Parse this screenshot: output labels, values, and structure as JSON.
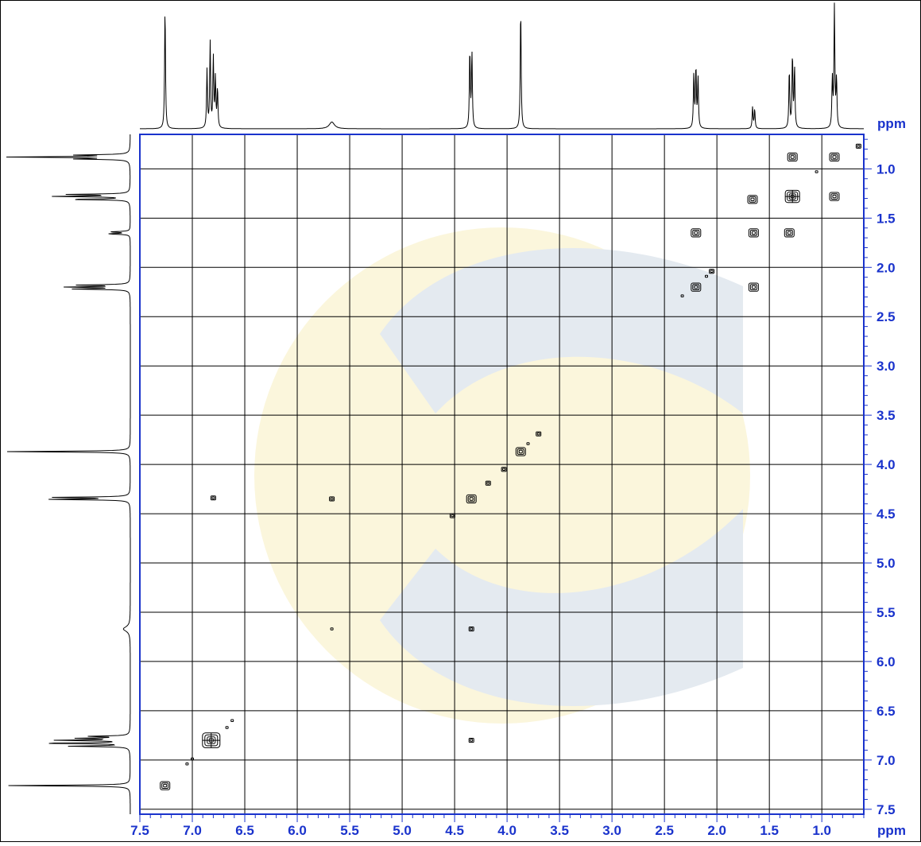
{
  "chart_data": {
    "type": "contour",
    "title": "",
    "x_axis": {
      "label": "ppm",
      "range": [
        7.5,
        0.6
      ],
      "ticks": [
        7.5,
        7.0,
        6.5,
        6.0,
        5.5,
        5.0,
        4.5,
        4.0,
        3.5,
        3.0,
        2.5,
        2.0,
        1.5,
        1.0
      ],
      "tick_labels": [
        "7.5",
        "7.0",
        "6.5",
        "6.0",
        "5.5",
        "5.0",
        "4.5",
        "4.0",
        "3.5",
        "3.0",
        "2.5",
        "2.0",
        "1.5",
        "1.0"
      ]
    },
    "y_axis": {
      "label": "ppm",
      "range": [
        0.65,
        7.55
      ],
      "ticks": [
        1.0,
        1.5,
        2.0,
        2.5,
        3.0,
        3.5,
        4.0,
        4.5,
        5.0,
        5.5,
        6.0,
        6.5,
        7.0,
        7.5
      ],
      "tick_labels": [
        "1.0",
        "1.5",
        "2.0",
        "2.5",
        "3.0",
        "3.5",
        "4.0",
        "4.5",
        "5.0",
        "5.5",
        "6.0",
        "6.5",
        "7.0",
        "7.5"
      ]
    },
    "grid": true,
    "projection_peaks": [
      {
        "ppm": 7.26,
        "height": 1.25
      },
      {
        "ppm": 6.86,
        "height": 0.6
      },
      {
        "ppm": 6.83,
        "height": 0.88
      },
      {
        "ppm": 6.8,
        "height": 0.72
      },
      {
        "ppm": 6.78,
        "height": 0.5
      },
      {
        "ppm": 6.76,
        "height": 0.4
      },
      {
        "ppm": 5.67,
        "height": 0.07
      },
      {
        "ppm": 4.355,
        "height": 0.8
      },
      {
        "ppm": 4.335,
        "height": 0.78
      },
      {
        "ppm": 3.87,
        "height": 1.25
      },
      {
        "ppm": 2.22,
        "height": 0.55
      },
      {
        "ppm": 2.2,
        "height": 0.62
      },
      {
        "ppm": 2.18,
        "height": 0.52
      },
      {
        "ppm": 1.66,
        "height": 0.22
      },
      {
        "ppm": 1.64,
        "height": 0.2
      },
      {
        "ppm": 1.31,
        "height": 0.6
      },
      {
        "ppm": 1.28,
        "height": 0.75
      },
      {
        "ppm": 1.26,
        "height": 0.62
      },
      {
        "ppm": 0.9,
        "height": 0.5
      },
      {
        "ppm": 0.88,
        "height": 1.25
      },
      {
        "ppm": 0.86,
        "height": 0.5
      }
    ],
    "cross_peaks": [
      {
        "x": 0.88,
        "y": 0.88,
        "size": "m"
      },
      {
        "x": 1.28,
        "y": 0.88,
        "size": "m"
      },
      {
        "x": 0.65,
        "y": 0.77,
        "size": "s"
      },
      {
        "x": 1.05,
        "y": 1.03,
        "size": "xs"
      },
      {
        "x": 1.66,
        "y": 1.31,
        "size": "m"
      },
      {
        "x": 1.28,
        "y": 1.28,
        "size": "l"
      },
      {
        "x": 0.88,
        "y": 1.28,
        "size": "m"
      },
      {
        "x": 2.2,
        "y": 1.65,
        "size": "m"
      },
      {
        "x": 1.65,
        "y": 1.65,
        "size": "m"
      },
      {
        "x": 1.31,
        "y": 1.65,
        "size": "m"
      },
      {
        "x": 2.05,
        "y": 2.04,
        "size": "s"
      },
      {
        "x": 2.1,
        "y": 2.09,
        "size": "xs"
      },
      {
        "x": 2.2,
        "y": 2.2,
        "size": "m"
      },
      {
        "x": 1.65,
        "y": 2.2,
        "size": "m"
      },
      {
        "x": 2.33,
        "y": 2.29,
        "size": "xs"
      },
      {
        "x": 3.7,
        "y": 3.69,
        "size": "s"
      },
      {
        "x": 3.8,
        "y": 3.79,
        "size": "xs"
      },
      {
        "x": 3.87,
        "y": 3.87,
        "size": "m"
      },
      {
        "x": 4.03,
        "y": 4.05,
        "size": "s"
      },
      {
        "x": 4.18,
        "y": 4.19,
        "size": "s"
      },
      {
        "x": 4.34,
        "y": 4.35,
        "size": "m"
      },
      {
        "x": 5.67,
        "y": 4.35,
        "size": "s"
      },
      {
        "x": 6.8,
        "y": 4.34,
        "size": "s"
      },
      {
        "x": 4.52,
        "y": 4.52,
        "size": "s"
      },
      {
        "x": 4.34,
        "y": 5.67,
        "size": "s"
      },
      {
        "x": 5.67,
        "y": 5.67,
        "size": "xs"
      },
      {
        "x": 6.62,
        "y": 6.6,
        "size": "xs"
      },
      {
        "x": 6.67,
        "y": 6.67,
        "size": "xs"
      },
      {
        "x": 6.82,
        "y": 6.8,
        "size": "xl"
      },
      {
        "x": 4.34,
        "y": 6.8,
        "size": "s"
      },
      {
        "x": 7.0,
        "y": 6.99,
        "size": "xs"
      },
      {
        "x": 7.05,
        "y": 7.04,
        "size": "xs"
      },
      {
        "x": 7.26,
        "y": 7.26,
        "size": "m"
      }
    ]
  }
}
